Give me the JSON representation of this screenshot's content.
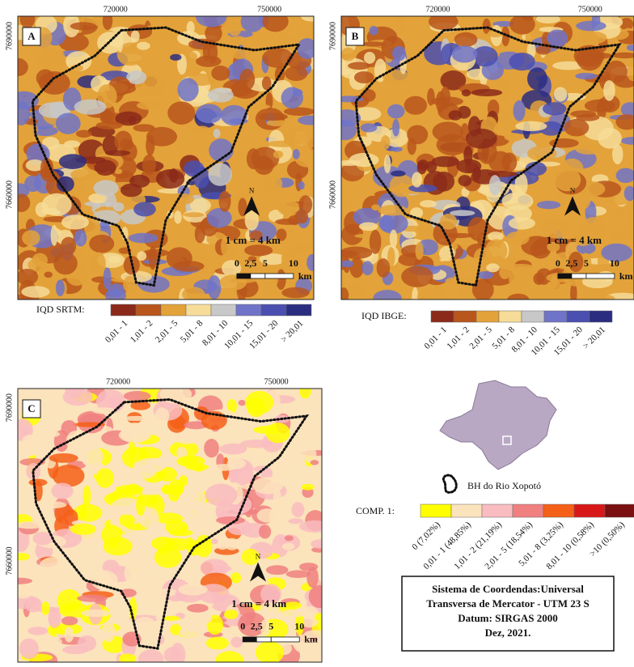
{
  "panels": [
    {
      "label": "A",
      "x_ticks": [
        "720000",
        "750000"
      ],
      "y_ticks": [
        "7690000",
        "7660000"
      ],
      "north": "N",
      "scale": "1 cm = 4 km",
      "scale_labels": [
        "0",
        "2,5",
        "5",
        "10"
      ],
      "scale_unit": "km"
    },
    {
      "label": "B",
      "x_ticks": [
        "720000",
        "750000"
      ],
      "y_ticks": [
        "7690000",
        "7660000"
      ],
      "north": "N",
      "scale": "1 cm = 4 km",
      "scale_labels": [
        "0",
        "2,5",
        "5",
        "10"
      ],
      "scale_unit": "km"
    },
    {
      "label": "C",
      "x_ticks": [
        "720000",
        "750000"
      ],
      "y_ticks": [
        "7690000",
        "7660000"
      ],
      "north": "N",
      "scale": "1 cm = 4 km",
      "scale_labels": [
        "0",
        "2,5",
        "5",
        "10"
      ],
      "scale_unit": "km"
    }
  ],
  "legends": [
    {
      "title": "IQD SRTM:",
      "classes": [
        {
          "label": "0,01 - 1",
          "color": "#8b2a1a"
        },
        {
          "label": "1,01 - 2",
          "color": "#b8561c"
        },
        {
          "label": "2,01 - 5",
          "color": "#e3a23a"
        },
        {
          "label": "5,01 - 8",
          "color": "#f6dc98"
        },
        {
          "label": "8,01 - 10",
          "color": "#c8c8c8"
        },
        {
          "label": "10,01 - 15",
          "color": "#7074c8"
        },
        {
          "label": "15,01 - 20",
          "color": "#4a4fb0"
        },
        {
          "label": "> 20,01",
          "color": "#2b2d80"
        }
      ]
    },
    {
      "title": "IQD IBGE:",
      "classes": [
        {
          "label": "0,01 - 1",
          "color": "#8b2a1a"
        },
        {
          "label": "1,01 - 2",
          "color": "#b8561c"
        },
        {
          "label": "2,01 - 5",
          "color": "#e3a23a"
        },
        {
          "label": "5,01 - 8",
          "color": "#f6dc98"
        },
        {
          "label": "8,01 - 10",
          "color": "#c8c8c8"
        },
        {
          "label": "10,01 - 15",
          "color": "#7074c8"
        },
        {
          "label": "15,01 - 20",
          "color": "#4a4fb0"
        },
        {
          "label": "> 20,01",
          "color": "#2b2d80"
        }
      ]
    },
    {
      "title": "COMP. 1:",
      "classes": [
        {
          "label": "0 (7,02%)",
          "color": "#ffff00"
        },
        {
          "label": "0,01 - 1 (48,85%)",
          "color": "#fbe3bc"
        },
        {
          "label": "1,01 - 2 (21,19%)",
          "color": "#f9bcc0"
        },
        {
          "label": "2,01 - 5 (18,54%)",
          "color": "#f08080"
        },
        {
          "label": "5,01 - 8 (3,25%)",
          "color": "#f46018"
        },
        {
          "label": "8,01 - 10 (0,58%)",
          "color": "#d81818"
        },
        {
          "label": ">10 (0,50%)",
          "color": "#7a1010"
        }
      ]
    }
  ],
  "basin_legend": "BH do Rio Xopotó",
  "info_box": [
    "Sistema de Coordendas:Universal",
    "Transversa de Mercator - UTM 23 S",
    "Datum: SIRGAS 2000",
    "Dez, 2021."
  ]
}
